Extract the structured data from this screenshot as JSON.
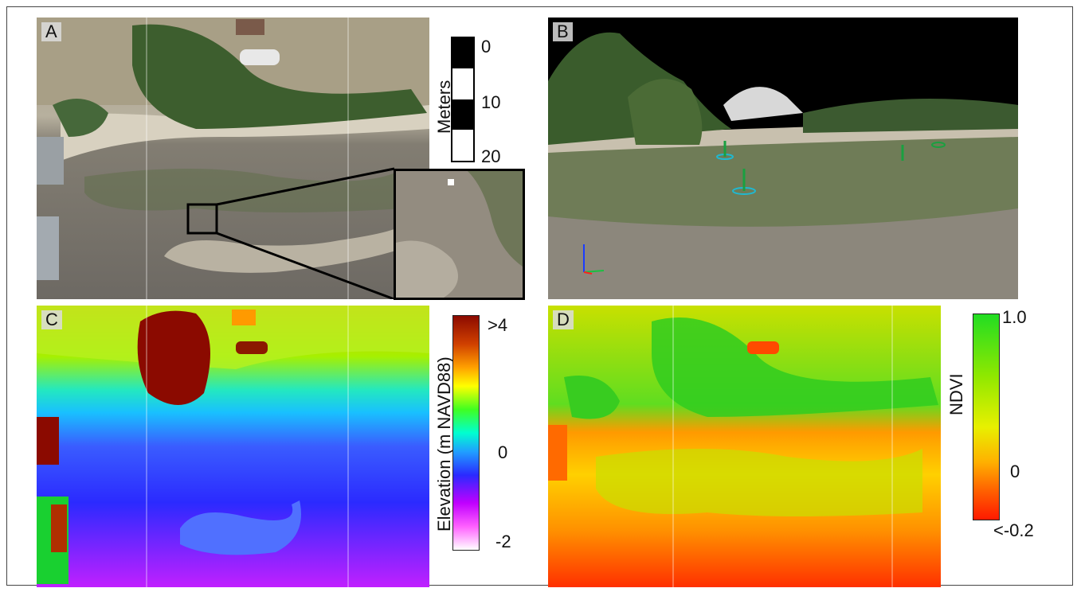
{
  "panels": {
    "a": {
      "label": "A"
    },
    "b": {
      "label": "B"
    },
    "c": {
      "label": "C"
    },
    "d": {
      "label": "D"
    }
  },
  "scale_bar": {
    "title": "Meters",
    "ticks": [
      "0",
      "10",
      "20"
    ]
  },
  "elevation_colorbar": {
    "title": "Elevation (m NAVD88)",
    "ticks": [
      ">4",
      "0",
      "-2"
    ]
  },
  "ndvi_colorbar": {
    "title": "NDVI",
    "ticks": [
      "1.0",
      "0",
      "<-0.2"
    ]
  },
  "colors": {
    "sand": "#c9bfa8",
    "vegetation": "#3f6b2c",
    "mudflat": "#6f6a62",
    "sky_black": "#000000",
    "elev_low": "#ff00ff",
    "elev_mid": "#2a3bff",
    "elev_high": "#8b0a00",
    "ndvi_high": "#22dd22",
    "ndvi_low": "#ff1a00"
  }
}
